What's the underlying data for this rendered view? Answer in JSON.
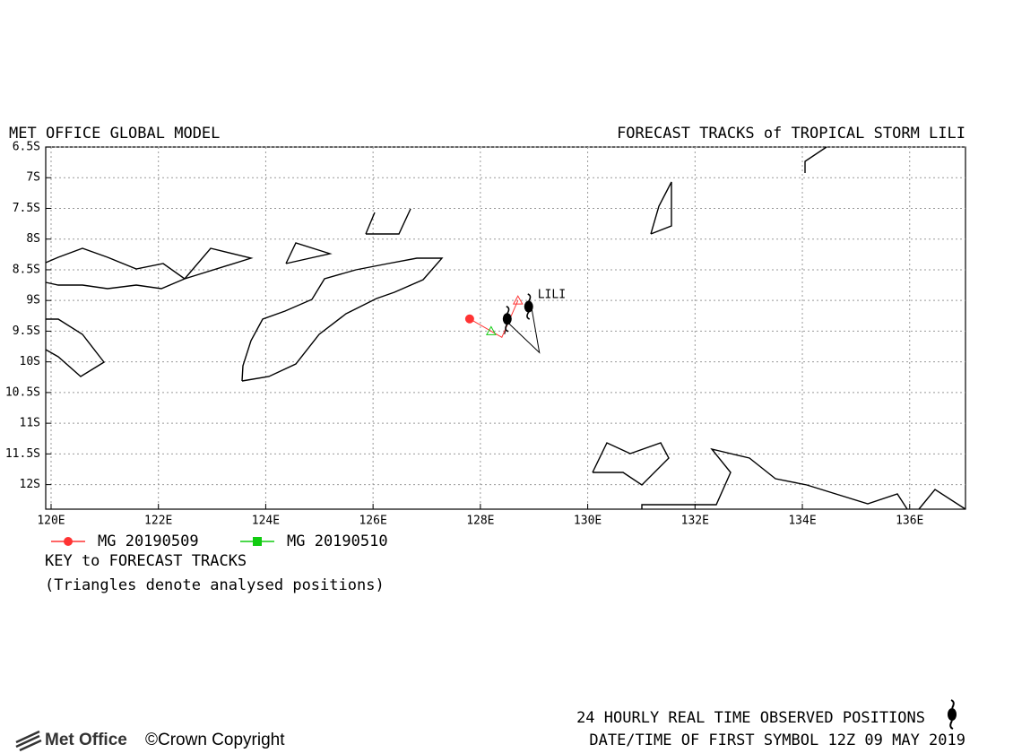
{
  "chart_data": {
    "type": "track-map",
    "title_left": "MET OFFICE GLOBAL MODEL",
    "title_right": "FORECAST TRACKS of TROPICAL STORM LILI",
    "xlim": [
      119.9,
      137.04
    ],
    "ylim": [
      -6.5,
      -12.4
    ],
    "xticks": [
      {
        "value": 120,
        "label": "120E"
      },
      {
        "value": 122,
        "label": "122E"
      },
      {
        "value": 124,
        "label": "124E"
      },
      {
        "value": 126,
        "label": "126E"
      },
      {
        "value": 128,
        "label": "128E"
      },
      {
        "value": 130,
        "label": "130E"
      },
      {
        "value": 132,
        "label": "132E"
      },
      {
        "value": 134,
        "label": "134E"
      },
      {
        "value": 136,
        "label": "136E"
      }
    ],
    "yticks": [
      {
        "value": -6.5,
        "label": "6.5S"
      },
      {
        "value": -7,
        "label": "7S"
      },
      {
        "value": -7.5,
        "label": "7.5S"
      },
      {
        "value": -8,
        "label": "8S"
      },
      {
        "value": -8.5,
        "label": "8.5S"
      },
      {
        "value": -9,
        "label": "9S"
      },
      {
        "value": -9.5,
        "label": "9.5S"
      },
      {
        "value": -10,
        "label": "10S"
      },
      {
        "value": -10.5,
        "label": "10.5S"
      },
      {
        "value": -11,
        "label": "11S"
      },
      {
        "value": -11.5,
        "label": "11.5S"
      },
      {
        "value": -12,
        "label": "12S"
      }
    ],
    "grid": true,
    "series": [
      {
        "name": "MG 20190509",
        "color": "#ff3333",
        "marker": "circle",
        "x": [
          127.8,
          128.4,
          128.7
        ],
        "values": [
          -9.3,
          -9.6,
          -9.0
        ]
      },
      {
        "name": "MG 20190510",
        "color": "#11cc11",
        "marker": "square",
        "x": [
          128.2
        ],
        "values": [
          -9.5
        ]
      }
    ],
    "observed": {
      "label": "LILI",
      "color": "#000000",
      "x": [
        128.5,
        128.9
      ],
      "values": [
        -9.3,
        -9.1
      ]
    },
    "observed_tracks": {
      "color": "#000000",
      "x": [
        128.45,
        128.5,
        129.1,
        128.95
      ],
      "values": [
        -9.55,
        -9.35,
        -9.85,
        -9.1
      ]
    },
    "key_title": "KEY to FORECAST TRACKS",
    "key_note": "(Triangles denote analysed positions)",
    "observed_note": "24 HOURLY REAL TIME OBSERVED POSITIONS",
    "first_symbol": "DATE/TIME OF FIRST SYMBOL 12Z 09 MAY 2019",
    "brand": "Met Office",
    "copyright": "©Crown Copyright"
  }
}
